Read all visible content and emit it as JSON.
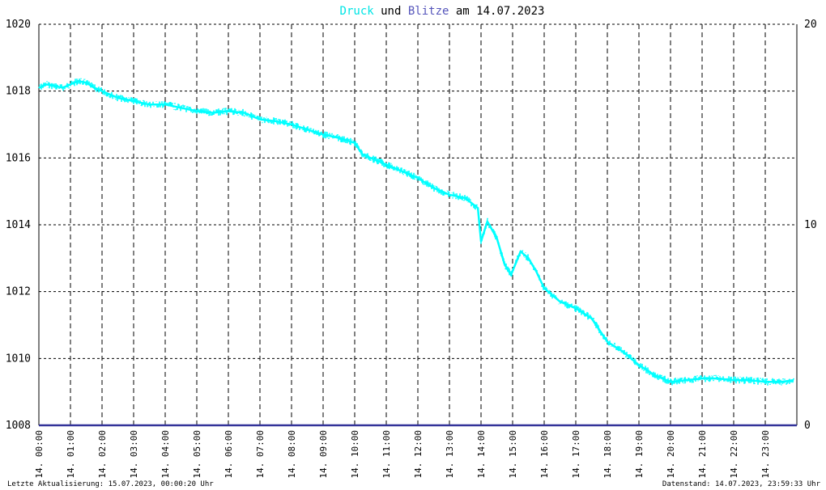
{
  "title": {
    "series1": "Druck",
    "joiner": " und ",
    "series2": "Blitze",
    "suffix": " am 14.07.2023"
  },
  "footer": {
    "left": "Letzte Aktualisierung: 15.07.2023, 00:00:20 Uhr",
    "right": "Datenstand: 14.07.2023, 23:59:33 Uhr"
  },
  "colors": {
    "pressure": "#00ffff",
    "lightning": "#333399",
    "title_series2": "#5555bb",
    "grid": "#000000"
  },
  "chart_data": {
    "type": "line",
    "x_tick_labels": [
      "14. 00:00",
      "14. 01:00",
      "14. 02:00",
      "14. 03:00",
      "14. 04:00",
      "14. 05:00",
      "14. 06:00",
      "14. 07:00",
      "14. 08:00",
      "14. 09:00",
      "14. 10:00",
      "14. 11:00",
      "14. 12:00",
      "14. 13:00",
      "14. 14:00",
      "14. 15:00",
      "14. 16:00",
      "14. 17:00",
      "14. 18:00",
      "14. 19:00",
      "14. 20:00",
      "14. 21:00",
      "14. 22:00",
      "14. 23:00"
    ],
    "x_range_hours": [
      0,
      24
    ],
    "y_left": {
      "ylim": [
        1008,
        1020
      ],
      "ticks": [
        "1008",
        "1010",
        "1012",
        "1014",
        "1016",
        "1018",
        "1020"
      ]
    },
    "y_right": {
      "ylim": [
        0,
        20
      ],
      "ticks": [
        "0",
        "10",
        "20"
      ]
    },
    "grid": true,
    "series": [
      {
        "name": "Druck",
        "axis": "left",
        "x_hours": [
          0,
          0.25,
          0.5,
          0.75,
          1,
          1.25,
          1.5,
          1.75,
          2,
          2.5,
          3,
          3.5,
          4,
          4.5,
          5,
          5.5,
          6,
          6.5,
          7,
          7.5,
          8,
          8.5,
          9,
          9.5,
          10,
          10.25,
          10.5,
          11,
          11.5,
          12,
          12.5,
          13,
          13.5,
          13.9,
          14.0,
          14.2,
          14.5,
          14.75,
          14.95,
          15.25,
          15.5,
          15.75,
          16,
          16.5,
          17,
          17.5,
          18,
          18.5,
          19,
          19.5,
          20,
          20.5,
          21,
          21.5,
          22,
          22.5,
          23,
          23.5,
          23.9
        ],
        "values": [
          1018.1,
          1018.2,
          1018.15,
          1018.1,
          1018.2,
          1018.3,
          1018.25,
          1018.1,
          1018.0,
          1017.8,
          1017.7,
          1017.6,
          1017.6,
          1017.5,
          1017.4,
          1017.35,
          1017.4,
          1017.35,
          1017.15,
          1017.1,
          1017.0,
          1016.85,
          1016.7,
          1016.6,
          1016.45,
          1016.1,
          1016.0,
          1015.8,
          1015.6,
          1015.4,
          1015.1,
          1014.9,
          1014.8,
          1014.5,
          1013.5,
          1014.1,
          1013.6,
          1012.8,
          1012.5,
          1013.2,
          1013.0,
          1012.6,
          1012.1,
          1011.7,
          1011.5,
          1011.2,
          1010.5,
          1010.2,
          1009.8,
          1009.5,
          1009.3,
          1009.35,
          1009.4,
          1009.4,
          1009.35,
          1009.35,
          1009.3,
          1009.3,
          1009.35
        ]
      },
      {
        "name": "Blitze",
        "axis": "right",
        "x_hours": [
          0,
          24
        ],
        "values": [
          0,
          0
        ]
      }
    ]
  }
}
